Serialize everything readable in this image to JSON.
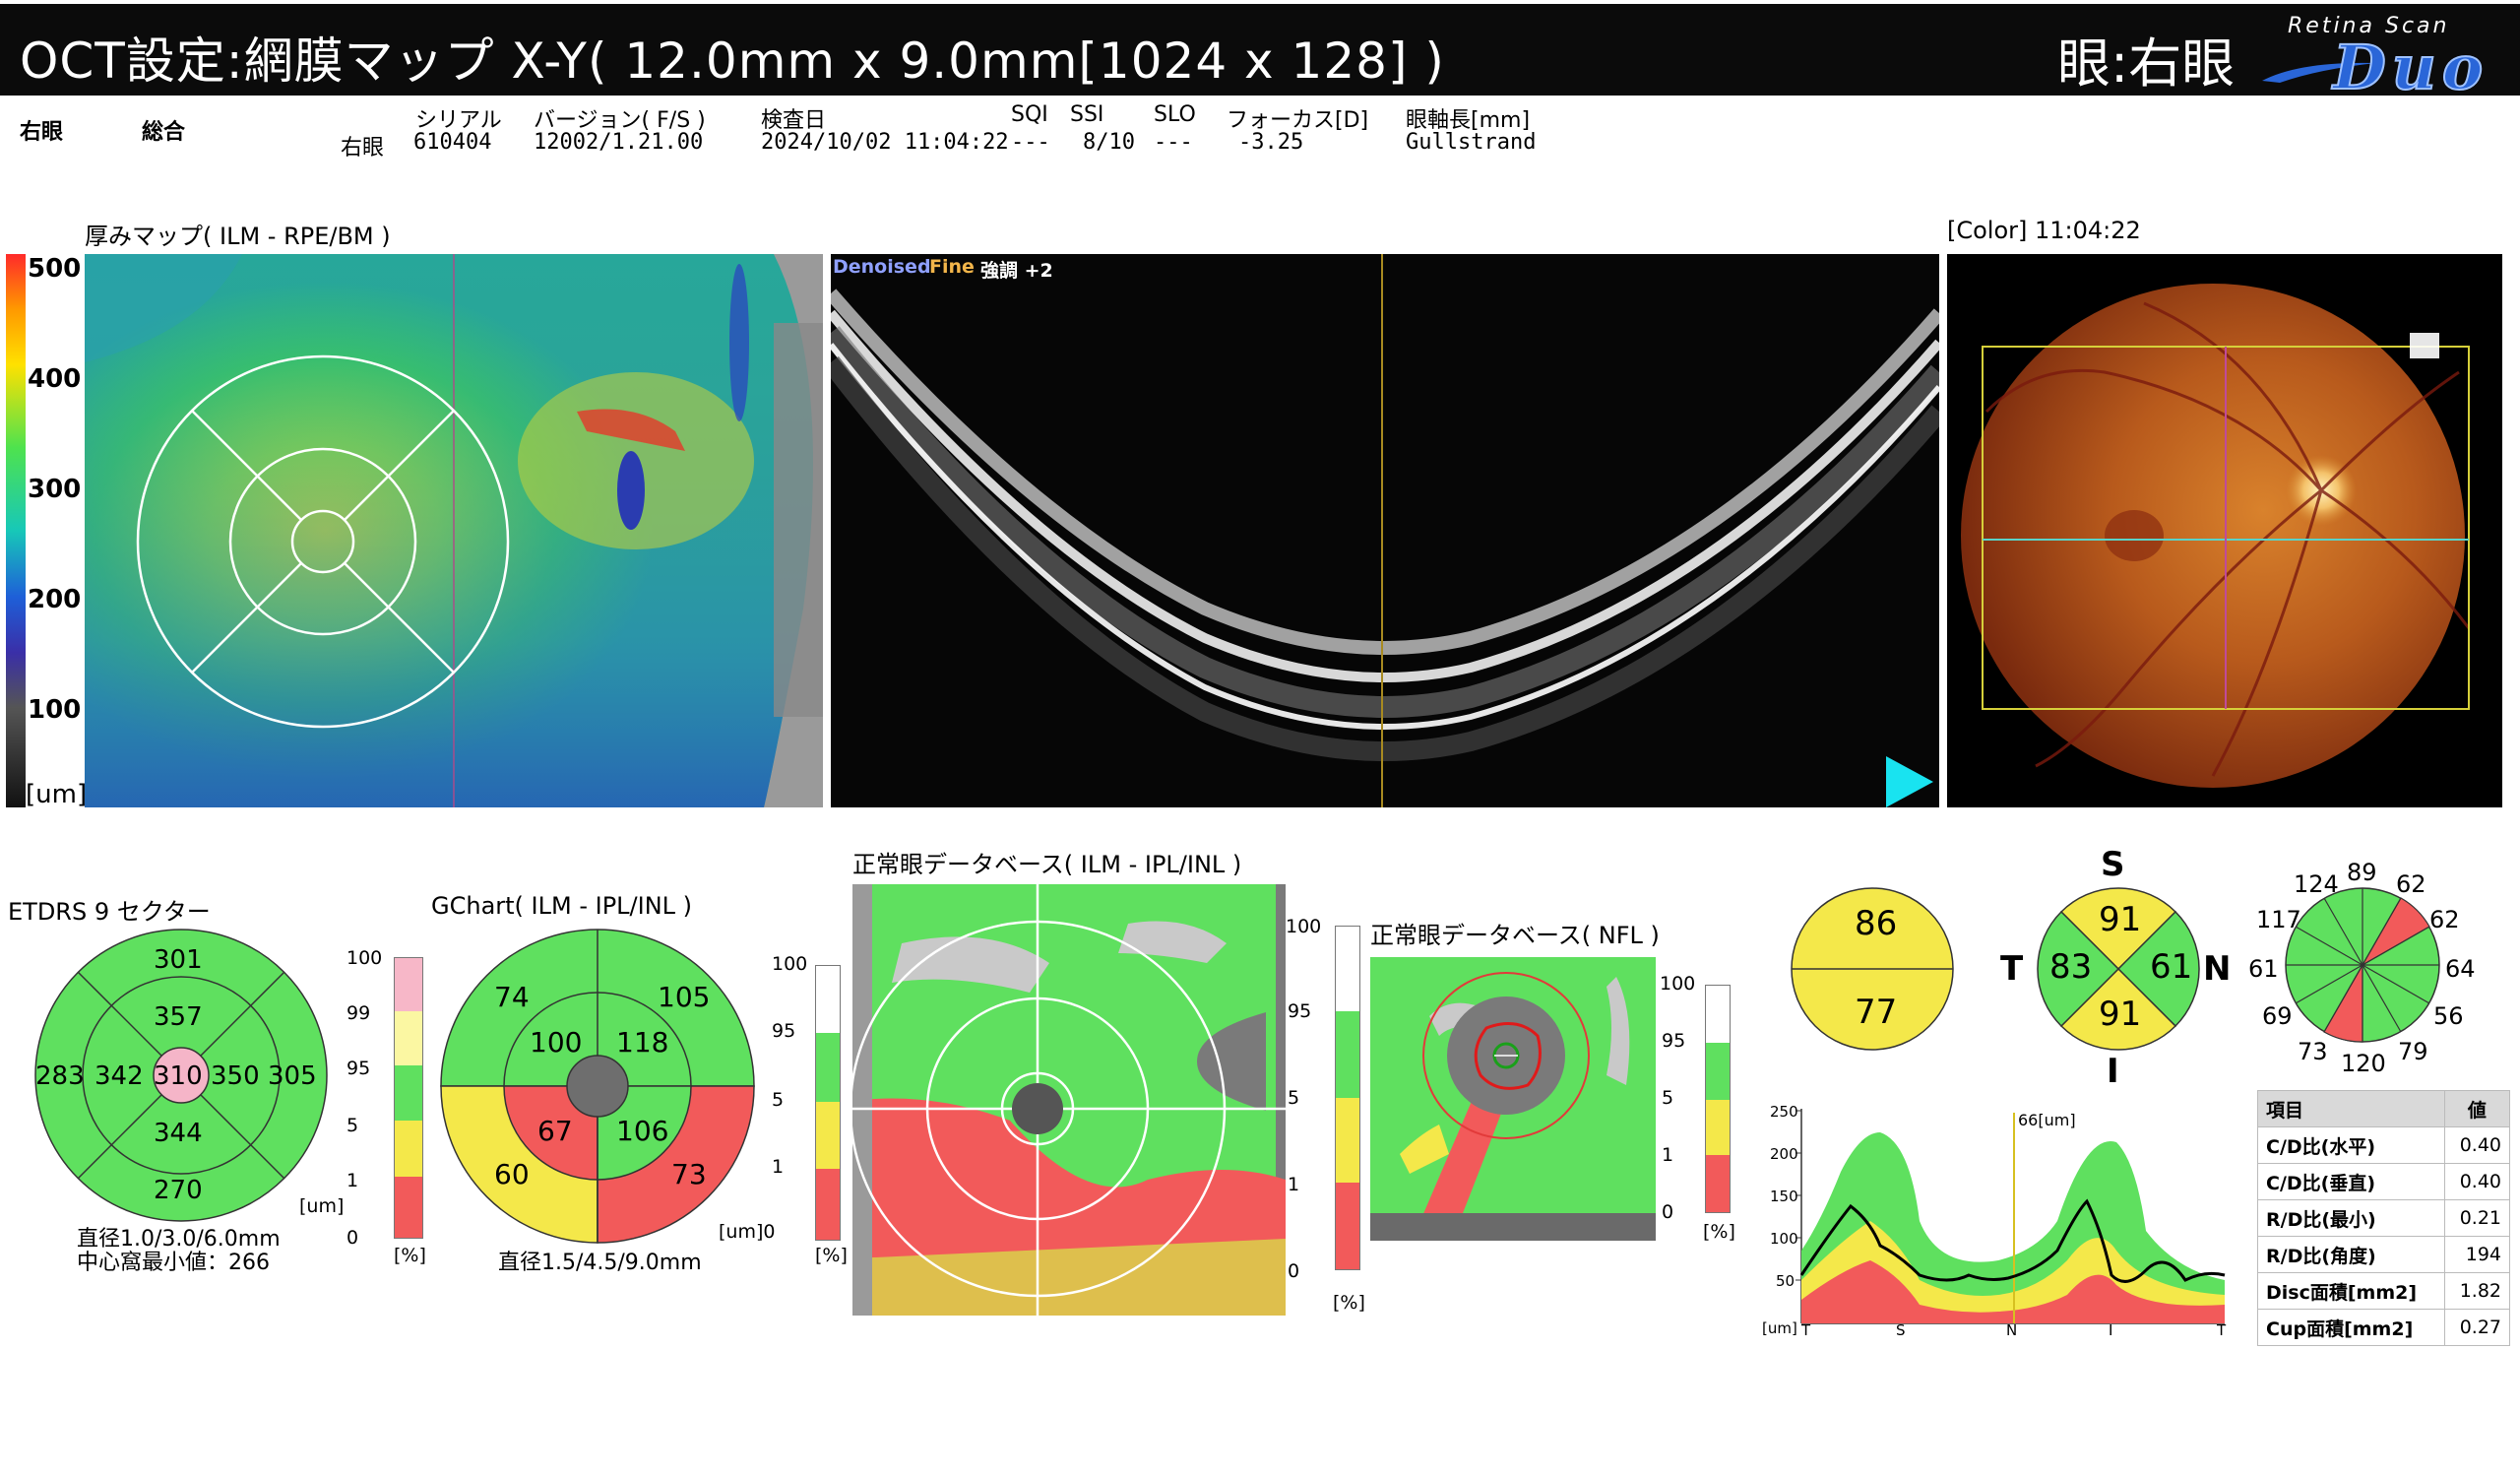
{
  "header": {
    "title": "OCT設定:網膜マップ X-Y( 12.0mm x 9.0mm[1024 x 128] )",
    "eye": "眼:右眼",
    "logo_top": "Retina Scan",
    "logo_main": "Duo"
  },
  "exam": {
    "eye": "右眼",
    "mode": "総合",
    "eye_row": "右眼",
    "serial_label": "シリアル",
    "serial": "610404",
    "version_label": "バージョン( F/S )",
    "version": "12002/1.21.00",
    "date_label": "検査日",
    "date": "2024/10/02 11:04:22",
    "sqi_label": "SQI",
    "sqi": "---",
    "ssi_label": "SSI",
    "ssi": "8/10",
    "slo_label": "SLO",
    "slo": "---",
    "focus_label": "フォーカス[D]",
    "focus": "-3.25",
    "axial_label": "眼軸長[mm]",
    "axial": "Gullstrand"
  },
  "thickness_map": {
    "title": "厚みマップ( ILM - RPE/BM )",
    "scale": [
      "500",
      "400",
      "300",
      "200",
      "100"
    ],
    "unit": "[um]"
  },
  "bscan": {
    "denoised": "Denoised",
    "fine": "Fine",
    "enhance": "強調 +2"
  },
  "fundus": {
    "title": "[Color] 11:04:22"
  },
  "etdrs": {
    "title": "ETDRS 9 セクター",
    "superior_outer": "301",
    "superior_inner": "357",
    "temporal_outer": "283",
    "temporal_inner": "342",
    "center": "310",
    "nasal_inner": "350",
    "nasal_outer": "305",
    "inferior_inner": "344",
    "inferior_outer": "270",
    "note1": "直径1.0/3.0/6.0mm",
    "note2": "中心窩最小値：266",
    "colors": {
      "normal": "#5fe05f",
      "thin": "#f5b5c8"
    }
  },
  "gchart_scale": {
    "ticks": [
      "100",
      "99",
      "95",
      "5",
      "1",
      "0"
    ],
    "unit_um": "[um]",
    "unit_pct": "[%]"
  },
  "gchart": {
    "title": "GChart( ILM - IPL/INL )",
    "outer_st": "74",
    "outer_sn": "105",
    "inner_st": "100",
    "inner_sn": "118",
    "inner_it": "67",
    "inner_in": "106",
    "outer_it": "60",
    "outer_in": "73",
    "note": "直径1.5/4.5/9.0mm",
    "unit": "[um]0"
  },
  "normdb_ilm": {
    "title": "正常眼データベース( ILM - IPL/INL )",
    "left_ticks": [
      "100",
      "95",
      "5",
      "1"
    ],
    "left_unit": "[%]",
    "right_ticks": [
      "100",
      "95",
      "5",
      "1",
      "0"
    ],
    "right_unit": "[%]"
  },
  "normdb_nfl": {
    "title": "正常眼データベース( NFL )",
    "ticks": [
      "100",
      "95",
      "5",
      "1",
      "0"
    ],
    "unit": "[%]"
  },
  "hemi": {
    "top": "86",
    "bottom": "77"
  },
  "quadrant": {
    "s_label": "S",
    "t_label": "T",
    "n_label": "N",
    "i_label": "I",
    "s": "91",
    "t": "83",
    "n": "61",
    "i": "91"
  },
  "clock": {
    "v1": "124",
    "v2": "89",
    "v3": "62",
    "v4": "117",
    "v5": "62",
    "v6": "61",
    "v7": "64",
    "v8": "69",
    "v9": "56",
    "v10": "73",
    "v11": "120",
    "v12": "79"
  },
  "tsnit": {
    "marker": "66[um]",
    "y_ticks": [
      "250",
      "200",
      "150",
      "100",
      "50"
    ],
    "y_unit": "[um]",
    "x_ticks": [
      "T",
      "S",
      "N",
      "I",
      "T"
    ]
  },
  "params": {
    "head_item": "項目",
    "head_value": "値",
    "rows": [
      {
        "label": "C/D比(水平)",
        "value": "0.40"
      },
      {
        "label": "C/D比(垂直)",
        "value": "0.40"
      },
      {
        "label": "R/D比(最小)",
        "value": "0.21"
      },
      {
        "label": "R/D比(角度)",
        "value": "194"
      },
      {
        "label": "Disc面積[mm2]",
        "value": "1.82"
      },
      {
        "label": "Cup面積[mm2]",
        "value": "0.27"
      }
    ]
  }
}
